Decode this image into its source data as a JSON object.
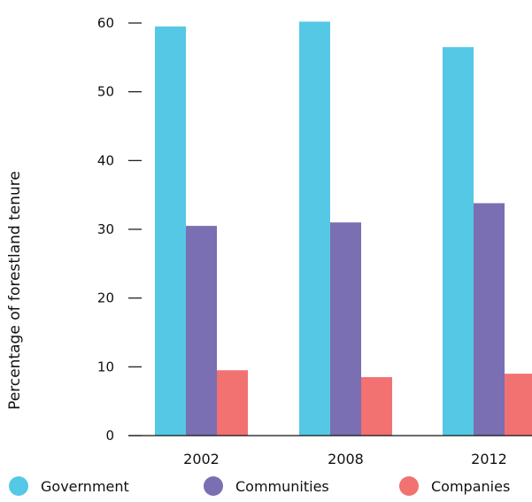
{
  "chart_data": {
    "type": "bar",
    "title": "",
    "xlabel": "",
    "ylabel": "Percentage of forestland tenure",
    "categories": [
      "2002",
      "2008",
      "2012"
    ],
    "series": [
      {
        "name": "Government",
        "values": [
          59.5,
          60.2,
          56.5
        ],
        "color": "#55c8e6"
      },
      {
        "name": "Communities",
        "values": [
          30.5,
          31.0,
          33.8
        ],
        "color": "#7a6fb2"
      },
      {
        "name": "Companies",
        "values": [
          9.5,
          8.5,
          9.0
        ],
        "color": "#f27171"
      }
    ],
    "ylim": [
      0,
      60
    ],
    "yticks": [
      "0",
      "10",
      "20",
      "30",
      "40",
      "50",
      "60"
    ],
    "grid": false,
    "legend_position": "bottom"
  }
}
